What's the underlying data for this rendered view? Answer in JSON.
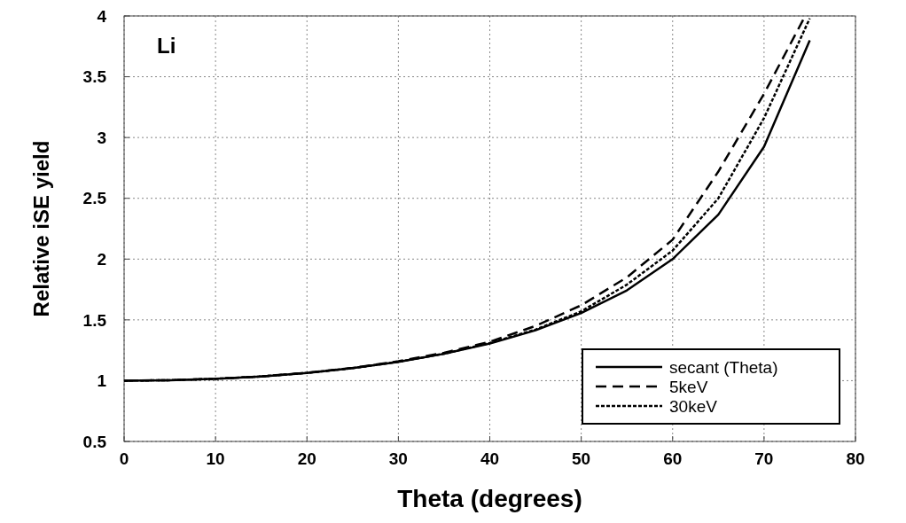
{
  "chart_data": {
    "type": "line",
    "xlabel": "Theta (degrees)",
    "ylabel": "Relative iSE yield",
    "annotations": [
      "Li"
    ],
    "xlim": [
      0,
      80
    ],
    "xticks": [
      0,
      10,
      20,
      30,
      40,
      50,
      60,
      70,
      80
    ],
    "ylim": [
      0.5,
      4
    ],
    "yticks": [
      0.5,
      1,
      1.5,
      2,
      2.5,
      3,
      3.5,
      4
    ],
    "grid": true,
    "legend": "bottom right",
    "series": [
      {
        "name": "secant (Theta)",
        "color": "#000000",
        "line_style": "solid",
        "x": [
          0,
          5,
          10,
          15,
          20,
          25,
          30,
          35,
          40,
          45,
          50,
          55,
          60,
          65,
          70,
          75
        ],
        "values": [
          1,
          1.004,
          1.015,
          1.035,
          1.064,
          1.103,
          1.155,
          1.221,
          1.305,
          1.414,
          1.556,
          1.743,
          2.0,
          2.366,
          2.924,
          3.8
        ]
      },
      {
        "name": "5keV",
        "color": "#000000",
        "line_style": "dashed",
        "x": [
          0,
          5,
          10,
          15,
          20,
          25,
          30,
          35,
          40,
          45,
          50,
          55,
          60,
          65,
          70,
          74.5
        ],
        "values": [
          1,
          1.004,
          1.015,
          1.035,
          1.065,
          1.105,
          1.16,
          1.23,
          1.32,
          1.45,
          1.62,
          1.85,
          2.16,
          2.72,
          3.36,
          4.0
        ]
      },
      {
        "name": "30keV",
        "color": "#000000",
        "line_style": "dotted",
        "x": [
          0,
          5,
          10,
          15,
          20,
          25,
          30,
          35,
          40,
          45,
          50,
          55,
          60,
          65,
          70,
          75
        ],
        "values": [
          1,
          1.004,
          1.015,
          1.035,
          1.064,
          1.103,
          1.155,
          1.222,
          1.31,
          1.42,
          1.57,
          1.79,
          2.07,
          2.5,
          3.16,
          3.98
        ]
      }
    ]
  }
}
